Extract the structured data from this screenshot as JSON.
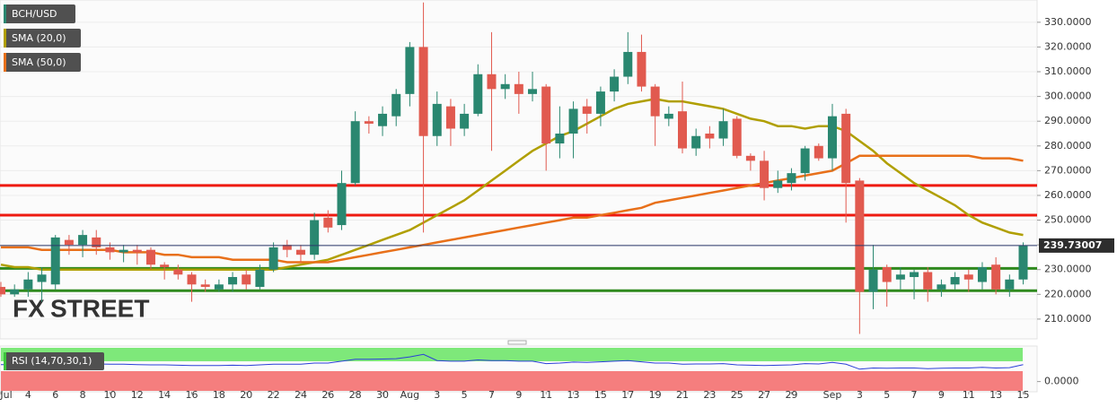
{
  "chart_data": [
    {
      "type": "candlestick",
      "categories": [
        "Jul",
        null,
        "4",
        null,
        "6",
        null,
        "8",
        null,
        "10",
        null,
        "12",
        null,
        "14",
        null,
        "16",
        null,
        "18",
        null,
        "20",
        null,
        "22",
        null,
        "24",
        null,
        "26",
        null,
        "28",
        null,
        "30",
        null,
        "Aug",
        null,
        "3",
        null,
        "5",
        null,
        "7",
        null,
        "9",
        null,
        "11",
        null,
        "13",
        null,
        "15",
        null,
        "17",
        null,
        "19",
        null,
        "21",
        null,
        "23",
        null,
        "25",
        null,
        "27",
        null,
        "29",
        null,
        null,
        "Sep",
        null,
        "3",
        null,
        "5",
        null,
        "7",
        null,
        "9",
        null,
        "11",
        null,
        "13",
        null,
        "15"
      ],
      "series": [
        {
          "name": "BCH/USD",
          "up_color": "#2a8770",
          "down_color": "#e15a4f",
          "open": [
            223,
            220,
            222,
            225,
            224,
            242,
            240,
            243,
            239,
            237,
            238,
            238,
            232,
            230,
            228,
            224,
            222,
            224,
            228,
            223,
            230,
            240,
            238,
            236,
            251,
            248,
            265,
            290,
            288,
            292,
            301,
            320,
            284,
            296,
            287,
            293,
            309,
            303,
            305,
            301,
            304,
            281,
            285,
            296,
            293,
            302,
            308,
            318,
            304,
            291,
            294,
            279,
            285,
            283,
            291,
            276,
            274,
            263,
            265,
            269,
            280,
            275,
            293,
            266,
            221,
            231,
            226,
            227,
            229,
            222,
            224,
            228,
            225,
            232,
            222,
            226
          ],
          "high": [
            225,
            224,
            229,
            231,
            244,
            244,
            246,
            246,
            241,
            240,
            240,
            239,
            233,
            232,
            229,
            226,
            226,
            229,
            230,
            232,
            241,
            242,
            240,
            253,
            254,
            270,
            294,
            292,
            296,
            303,
            322,
            338,
            302,
            299,
            297,
            313,
            326,
            309,
            310,
            310,
            305,
            296,
            298,
            299,
            304,
            311,
            326,
            325,
            305,
            296,
            306,
            287,
            288,
            295,
            292,
            277,
            278,
            270,
            271,
            280,
            281,
            297,
            295,
            267,
            240,
            232,
            231,
            230,
            231,
            226,
            229,
            230,
            233,
            235,
            228,
            241
          ],
          "low": [
            219,
            219,
            219,
            217,
            222,
            236,
            235,
            236,
            234,
            233,
            232,
            230,
            226,
            226,
            217,
            221,
            221,
            221,
            222,
            222,
            229,
            235,
            233,
            234,
            245,
            246,
            264,
            285,
            284,
            288,
            296,
            245,
            280,
            280,
            284,
            292,
            278,
            299,
            293,
            298,
            270,
            275,
            275,
            285,
            288,
            298,
            305,
            302,
            280,
            288,
            277,
            276,
            279,
            280,
            275,
            270,
            258,
            261,
            262,
            266,
            274,
            270,
            249,
            204,
            214,
            215,
            222,
            218,
            217,
            219,
            222,
            221,
            222,
            220,
            219,
            224
          ],
          "close": [
            220,
            222,
            226,
            228,
            243,
            240,
            244,
            239,
            237,
            238,
            237,
            232,
            231,
            228,
            224,
            223,
            224,
            227,
            224,
            230,
            239,
            238,
            236,
            250,
            247,
            265,
            290,
            289,
            293,
            301,
            320,
            284,
            297,
            287,
            293,
            309,
            303,
            305,
            301,
            303,
            281,
            285,
            295,
            293,
            302,
            308,
            318,
            304,
            292,
            293,
            279,
            284,
            283,
            290,
            276,
            274,
            263,
            266,
            269,
            279,
            275,
            292,
            265,
            221,
            230,
            225,
            228,
            229,
            222,
            224,
            227,
            226,
            231,
            222,
            226,
            239.73007
          ]
        },
        {
          "name": "SMA (20,0)",
          "type": "line",
          "color": "#b09f00",
          "values": [
            232,
            231,
            231,
            230,
            230,
            230,
            230,
            230,
            230,
            230,
            230,
            230,
            230,
            230,
            230,
            230,
            230,
            230,
            230,
            230,
            230,
            231,
            232,
            233,
            234,
            236,
            238,
            240,
            242,
            244,
            246,
            249,
            252,
            255,
            258,
            262,
            266,
            270,
            274,
            278,
            281,
            284,
            286,
            289,
            292,
            295,
            297,
            298,
            299,
            298,
            298,
            297,
            296,
            295,
            293,
            291,
            290,
            288,
            288,
            287,
            288,
            288,
            286,
            282,
            278,
            273,
            269,
            265,
            262,
            259,
            256,
            252,
            249,
            247,
            245,
            244
          ]
        },
        {
          "name": "SMA (50,0)",
          "type": "line",
          "color": "#e8701a",
          "values": [
            239,
            239,
            239,
            238,
            238,
            238,
            238,
            238,
            238,
            237,
            237,
            237,
            236,
            236,
            235,
            235,
            235,
            234,
            234,
            234,
            234,
            233,
            233,
            233,
            233,
            234,
            235,
            236,
            237,
            238,
            239,
            240,
            241,
            242,
            243,
            244,
            245,
            246,
            247,
            248,
            249,
            250,
            251,
            251,
            252,
            253,
            254,
            255,
            257,
            258,
            259,
            260,
            261,
            262,
            263,
            264,
            265,
            266,
            267,
            268,
            269,
            270,
            273,
            276,
            276,
            276,
            276,
            276,
            276,
            276,
            276,
            276,
            275,
            275,
            275,
            274
          ]
        }
      ],
      "ylim": [
        202,
        339
      ],
      "yticks": [
        {
          "value": 210,
          "label": "210.0000"
        },
        {
          "value": 220,
          "label": "220.0000"
        },
        {
          "value": 230,
          "label": "230.0000"
        },
        {
          "value": 240,
          "label": "240.0000"
        },
        {
          "value": 250,
          "label": "250.0000"
        },
        {
          "value": 260,
          "label": "260.0000"
        },
        {
          "value": 270,
          "label": "270.0000"
        },
        {
          "value": 280,
          "label": "280.0000"
        },
        {
          "value": 290,
          "label": "290.0000"
        },
        {
          "value": 300,
          "label": "300.0000"
        },
        {
          "value": 310,
          "label": "310.0000"
        },
        {
          "value": 320,
          "label": "320.0000"
        },
        {
          "value": 330,
          "label": "330.0000"
        }
      ],
      "grid": true,
      "levels": [
        {
          "value": 264,
          "color": "#ee1a10"
        },
        {
          "value": 252,
          "color": "#ee1a10"
        },
        {
          "value": 230.5,
          "color": "#2f8a1e"
        },
        {
          "value": 221.5,
          "color": "#2f8a1e"
        }
      ],
      "last_price": 239.73007,
      "watermark": {
        "left": "FX",
        "right": "STREET"
      }
    },
    {
      "type": "line",
      "series": [
        {
          "name": "RSI (14,70,30,1)",
          "color": "#2a3fd8",
          "values": [
            55,
            55,
            56,
            56,
            58,
            58,
            58,
            57,
            56,
            56,
            55,
            54,
            54,
            53,
            52,
            52,
            52,
            53,
            52,
            54,
            56,
            56,
            56,
            60,
            60,
            66,
            72,
            72,
            73,
            74,
            80,
            88,
            68,
            66,
            66,
            70,
            68,
            68,
            66,
            66,
            58,
            60,
            63,
            62,
            64,
            66,
            68,
            64,
            60,
            60,
            56,
            57,
            57,
            58,
            54,
            53,
            52,
            53,
            54,
            58,
            57,
            62,
            56,
            40,
            44,
            43,
            44,
            44,
            42,
            43,
            44,
            44,
            46,
            44,
            45,
            55
          ]
        }
      ],
      "ylim": [
        -33,
        115
      ],
      "yticks": [
        {
          "value": 0,
          "label": "0.0000"
        }
      ]
    }
  ]
}
